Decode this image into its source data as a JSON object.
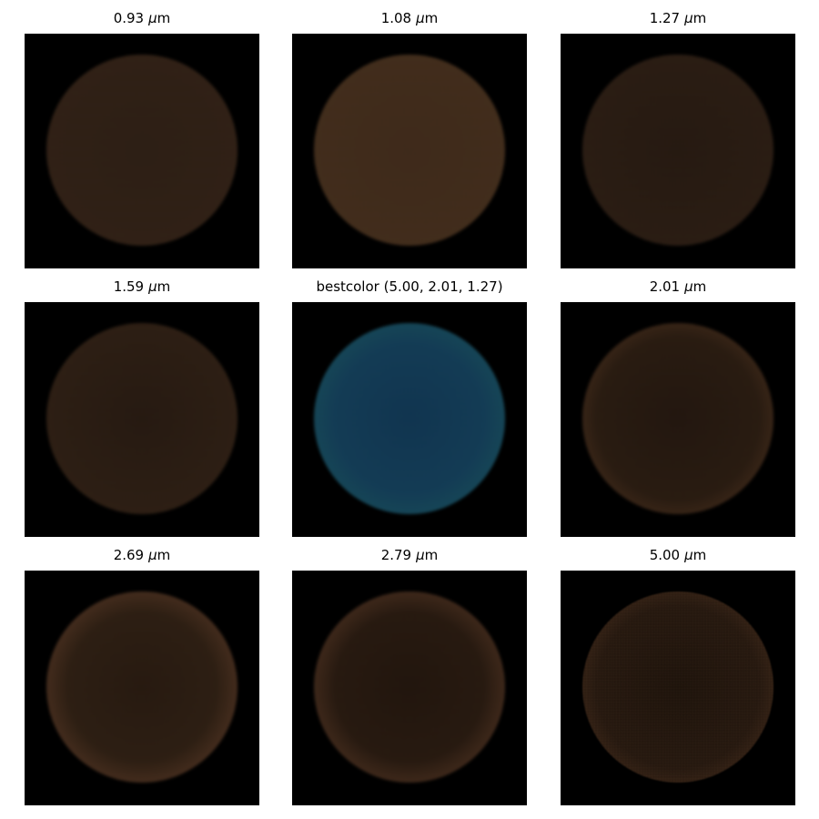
{
  "panels": [
    {
      "title": "0.93",
      "unit": "m"
    },
    {
      "title": "1.08",
      "unit": "m"
    },
    {
      "title": "1.27",
      "unit": "m"
    },
    {
      "title": "1.59",
      "unit": "m"
    },
    {
      "title": "bestcolor (5.00, 2.01, 1.27)",
      "unit": ""
    },
    {
      "title": "2.01",
      "unit": "m"
    },
    {
      "title": "2.69",
      "unit": "m"
    },
    {
      "title": "2.79",
      "unit": "m"
    },
    {
      "title": "5.00",
      "unit": "m"
    }
  ],
  "unit_prefix": "μ",
  "colors": {
    "background": "#ffffff",
    "frame": "#000000",
    "disk_brown": "#3f2b1a",
    "disk_teal": "#0f3a55",
    "limb_highlight": "#c17a4c"
  }
}
